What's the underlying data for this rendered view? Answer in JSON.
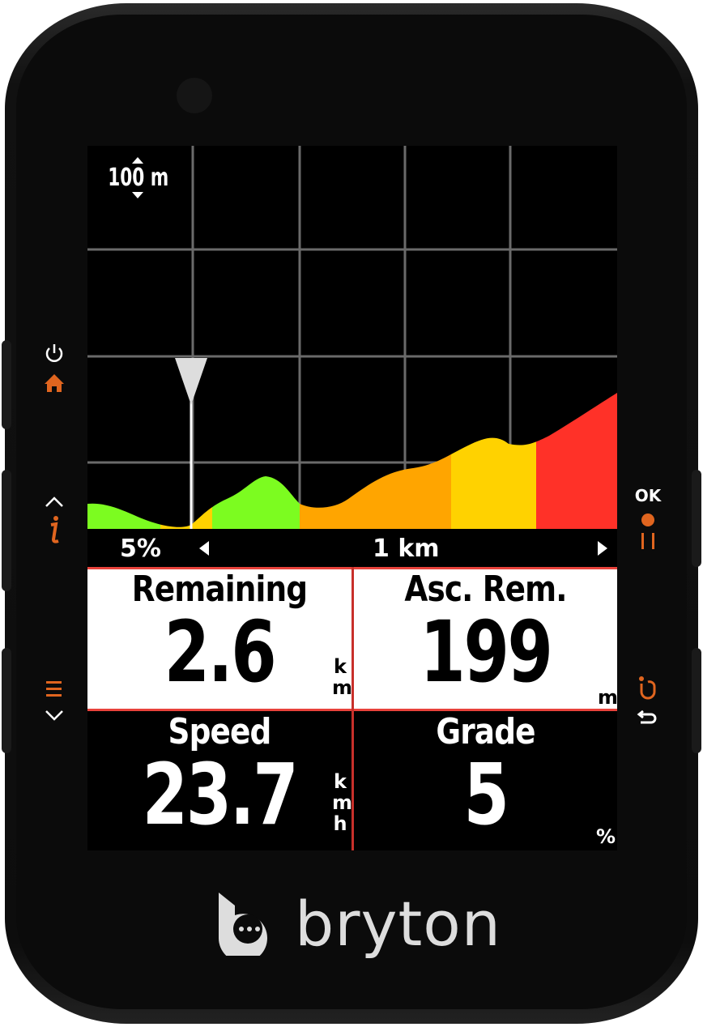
{
  "device": {
    "brand": "bryton"
  },
  "left_buttons": [
    {
      "icons": [
        "power-icon",
        "home-icon"
      ]
    },
    {
      "icons": [
        "chevron-up-icon",
        "info-icon"
      ]
    },
    {
      "icons": [
        "menu-icon",
        "chevron-down-icon"
      ]
    }
  ],
  "right_buttons": [
    {
      "label": "OK",
      "icons": [
        "record-icon",
        "pause-icon"
      ]
    },
    {
      "icons": [
        "lap-icon",
        "back-icon"
      ]
    }
  ],
  "elevation": {
    "vertical_scale": "100 m",
    "current_grade": "5%",
    "horizontal_scale": "1 km",
    "grade_colors": {
      "easy": "#7cfc20",
      "moderate": "#ffa500",
      "hard": "#ffd200",
      "steep": "#ff3128"
    }
  },
  "fields": [
    {
      "label": "Remaining",
      "value": "2.6",
      "unit": [
        "k",
        "m"
      ]
    },
    {
      "label": "Asc. Rem.",
      "value": "199",
      "unit": [
        "m"
      ]
    },
    {
      "label": "Speed",
      "value": "23.7",
      "unit": [
        "k",
        "m",
        "h"
      ]
    },
    {
      "label": "Grade",
      "value": "5",
      "unit": [
        "%"
      ]
    }
  ],
  "accent_color": "#e0651f"
}
